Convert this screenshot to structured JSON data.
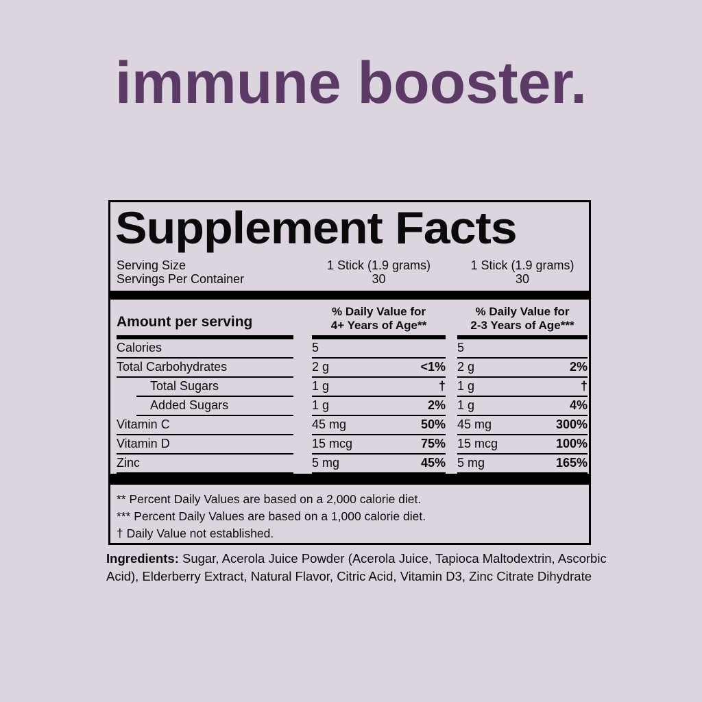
{
  "page": {
    "background_color": "#dcd5df",
    "brand_title": "immune booster.",
    "brand_title_color": "#5c3a66"
  },
  "panel": {
    "title": "Supplement Facts",
    "serving": {
      "rows": [
        {
          "label": "Serving Size",
          "col1": "1 Stick (1.9 grams)",
          "col2": "1 Stick (1.9 grams)"
        },
        {
          "label": "Servings Per Container",
          "col1": "30",
          "col2": "30"
        }
      ]
    },
    "header": {
      "amount_label": "Amount per serving",
      "col1_line1": "% Daily Value for",
      "col1_line2": "4+ Years of Age**",
      "col2_line1": "% Daily Value for",
      "col2_line2": "2-3 Years of Age***"
    },
    "rows": [
      {
        "name": "Calories",
        "amount1": "5",
        "dv1": "",
        "amount2": "5",
        "dv2": ""
      },
      {
        "name": "Total Carbohydrates",
        "amount1": "2 g",
        "dv1": "<1%",
        "amount2": "2 g",
        "dv2": "2%"
      },
      {
        "name": "Total Sugars",
        "amount1": "1 g",
        "dv1": "†",
        "amount2": "1 g",
        "dv2": "†"
      },
      {
        "name": "Added Sugars",
        "amount1": "1 g",
        "dv1": "2%",
        "amount2": "1 g",
        "dv2": "4%"
      },
      {
        "name": "Vitamin C",
        "amount1": "45 mg",
        "dv1": "50%",
        "amount2": "45 mg",
        "dv2": "300%"
      },
      {
        "name": "Vitamin D",
        "amount1": "15 mcg",
        "dv1": "75%",
        "amount2": "15 mcg",
        "dv2": "100%"
      },
      {
        "name": "Zinc",
        "amount1": "5 mg",
        "dv1": "45%",
        "amount2": "5 mg",
        "dv2": "165%"
      }
    ],
    "footnotes": [
      "** Percent Daily Values are based on a 2,000 calorie diet.",
      "*** Percent Daily Values are based on a 1,000 calorie diet.",
      "† Daily Value not established."
    ]
  },
  "ingredients": {
    "label": "Ingredients:",
    "text": " Sugar, Acerola Juice Powder (Acerola Juice, Tapioca Maltodextrin, Ascorbic Acid), Elderberry Extract, Natural Flavor, Citric Acid, Vitamin D3, Zinc Citrate Dihydrate"
  }
}
